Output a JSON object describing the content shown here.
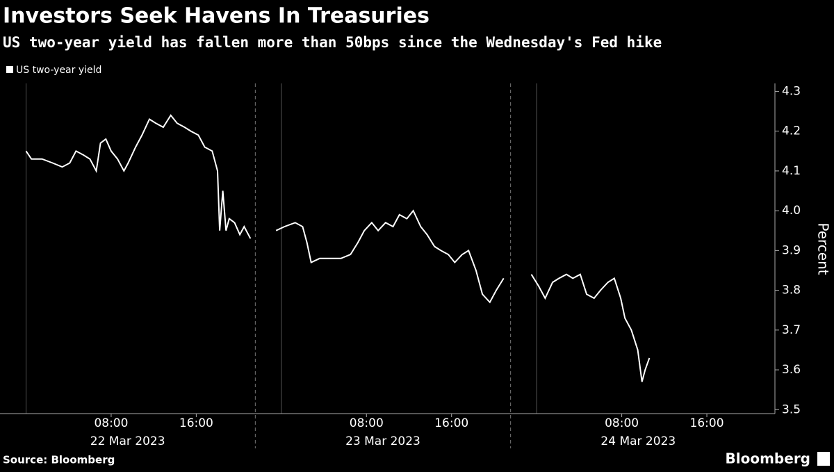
{
  "chart_data": {
    "type": "line",
    "title": "Investors Seek Havens In Treasuries",
    "subtitle": "US two-year yield has fallen more than 50bps since the Wednesday's Fed hike",
    "y_label": "Percent",
    "source": "Source: Bloomberg",
    "brand": "Bloomberg",
    "days": [
      "22 Mar 2023",
      "23 Mar 2023",
      "24 Mar 2023"
    ],
    "x": [
      0,
      0.5,
      1.5,
      2.5,
      3.4,
      4.1,
      4.7,
      5.4,
      6.0,
      6.6,
      7.0,
      7.5,
      8.0,
      8.6,
      9.2,
      9.6,
      10.3,
      10.9,
      11.6,
      12.2,
      12.9,
      13.6,
      14.2,
      14.9,
      15.5,
      16.2,
      16.8,
      17.5,
      18.0,
      18.2,
      18.5,
      18.8,
      19.1,
      19.6,
      20.1,
      20.5,
      21.1,
      22,
      23.5,
      24.3,
      25.3,
      26.0,
      26.4,
      26.8,
      27.6,
      28.6,
      29.6,
      30.5,
      31.2,
      31.8,
      32.5,
      33.1,
      33.8,
      34.5,
      35.1,
      35.8,
      36.4,
      37.1,
      37.7,
      38.4,
      39.0,
      39.7,
      40.3,
      41.0,
      41.6,
      42.3,
      42.9,
      43.6,
      44.2,
      44.9,
      46,
      47.5,
      48.2,
      48.8,
      49.5,
      50.1,
      50.8,
      51.4,
      52.1,
      52.7,
      53.4,
      54.0,
      54.7,
      55.3,
      55.9,
      56.3,
      56.9,
      57.5,
      57.9,
      58.2,
      58.6
    ],
    "series": [
      {
        "name": "US two-year yield",
        "color": "#ffffff",
        "values": [
          4.15,
          4.13,
          4.13,
          4.12,
          4.11,
          4.12,
          4.15,
          4.14,
          4.13,
          4.1,
          4.17,
          4.18,
          4.15,
          4.13,
          4.1,
          4.12,
          4.16,
          4.19,
          4.23,
          4.22,
          4.21,
          4.24,
          4.22,
          4.21,
          4.2,
          4.19,
          4.16,
          4.15,
          4.1,
          3.95,
          4.05,
          3.95,
          3.98,
          3.97,
          3.94,
          3.96,
          3.93,
          null,
          3.95,
          3.96,
          3.97,
          3.96,
          3.92,
          3.87,
          3.88,
          3.88,
          3.88,
          3.89,
          3.92,
          3.95,
          3.97,
          3.95,
          3.97,
          3.96,
          3.99,
          3.98,
          4.0,
          3.96,
          3.94,
          3.91,
          3.9,
          3.89,
          3.87,
          3.89,
          3.9,
          3.85,
          3.79,
          3.77,
          3.8,
          3.83,
          null,
          3.84,
          3.81,
          3.78,
          3.82,
          3.83,
          3.84,
          3.83,
          3.84,
          3.79,
          3.78,
          3.8,
          3.82,
          3.83,
          3.78,
          3.73,
          3.7,
          3.65,
          3.57,
          3.6,
          3.63
        ]
      }
    ],
    "xlim": [
      -2.45,
      70.4
    ],
    "xticks": [
      {
        "value": 8,
        "label": "08:00"
      },
      {
        "value": 16,
        "label": "16:00"
      },
      {
        "value": 32,
        "label": "08:00"
      },
      {
        "value": 40,
        "label": "16:00"
      },
      {
        "value": 56,
        "label": "08:00"
      },
      {
        "value": 64,
        "label": "16:00"
      }
    ],
    "ylim": [
      3.49,
      4.32
    ],
    "yticks": [
      3.5,
      3.6,
      3.7,
      3.8,
      3.9,
      {
        "value": 4.0,
        "label": "4.0"
      },
      4.1,
      4.2,
      4.3
    ],
    "y_axis_side": "right"
  }
}
